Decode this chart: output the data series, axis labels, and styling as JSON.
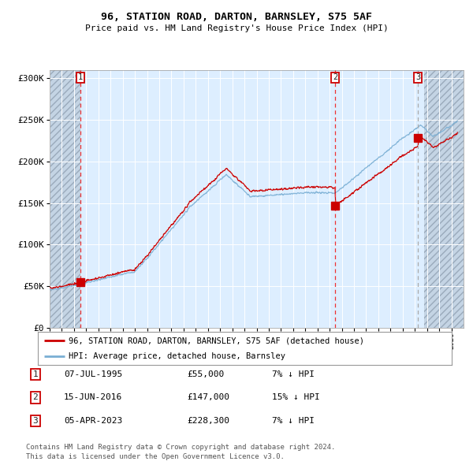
{
  "title": "96, STATION ROAD, DARTON, BARNSLEY, S75 5AF",
  "subtitle": "Price paid vs. HM Land Registry's House Price Index (HPI)",
  "legend_line1": "96, STATION ROAD, DARTON, BARNSLEY, S75 5AF (detached house)",
  "legend_line2": "HPI: Average price, detached house, Barnsley",
  "footer1": "Contains HM Land Registry data © Crown copyright and database right 2024.",
  "footer2": "This data is licensed under the Open Government Licence v3.0.",
  "transactions": [
    {
      "num": 1,
      "date": "07-JUL-1995",
      "price": 55000,
      "pct": "7%",
      "dir": "↓",
      "year": 1995.52,
      "vline_style": "--",
      "vline_color": "#ee3333"
    },
    {
      "num": 2,
      "date": "15-JUN-2016",
      "price": 147000,
      "pct": "15%",
      "dir": "↓",
      "year": 2016.45,
      "vline_style": "--",
      "vline_color": "#ee3333"
    },
    {
      "num": 3,
      "date": "05-APR-2023",
      "price": 228300,
      "pct": "7%",
      "dir": "↓",
      "year": 2023.26,
      "vline_style": "--",
      "vline_color": "#aaaaaa"
    }
  ],
  "ylim": [
    0,
    310000
  ],
  "yticks": [
    0,
    50000,
    100000,
    150000,
    200000,
    250000,
    300000
  ],
  "ytick_labels": [
    "£0",
    "£50K",
    "£100K",
    "£150K",
    "£200K",
    "£250K",
    "£300K"
  ],
  "xmin": 1993.0,
  "xmax": 2027.0,
  "hpi_color": "#7aafd4",
  "price_color": "#cc0000",
  "marker_color": "#cc0000",
  "plot_bg": "#ddeeff",
  "hatch_bg": "#c4d4e4"
}
